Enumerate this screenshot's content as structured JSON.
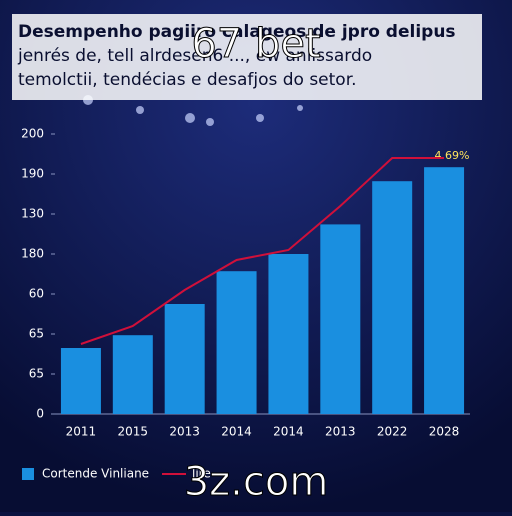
{
  "chart_data": {
    "type": "bar",
    "title": "Desempenho pagiiro calageos de jpro delipus",
    "subtitle": [
      "jenrés de, tell alrdesen6 ..., ew anlissardo",
      "temolctii, tendécias e desafjos do setor."
    ],
    "watermarks": [
      "67 bet",
      "3z.com"
    ],
    "annotation": "4.69%",
    "categories": [
      "2011",
      "2015",
      "2013",
      "2014",
      "2014",
      "2013",
      "2022",
      "2028"
    ],
    "series": [
      {
        "name": "Cortende Vinliane",
        "color": "#1a8fe0",
        "type": "bar",
        "values": [
          1.65,
          1.97,
          2.75,
          3.57,
          4.0,
          4.74,
          5.82,
          6.17
        ]
      },
      {
        "name": "lire",
        "color": "#d0103a",
        "type": "line",
        "values": [
          1.75,
          2.2,
          3.1,
          3.85,
          4.1,
          5.2,
          6.4,
          6.4
        ]
      }
    ],
    "ylim": [
      0,
      7
    ],
    "yticks": [
      {
        "value": 0,
        "label": "0"
      },
      {
        "value": 1,
        "label": "65"
      },
      {
        "value": 2,
        "label": "65"
      },
      {
        "value": 3,
        "label": "60"
      },
      {
        "value": 4,
        "label": "180"
      },
      {
        "value": 5,
        "label": "130"
      },
      {
        "value": 6,
        "label": "190"
      },
      {
        "value": 7,
        "label": "200"
      }
    ],
    "legend": "bottom-left"
  }
}
